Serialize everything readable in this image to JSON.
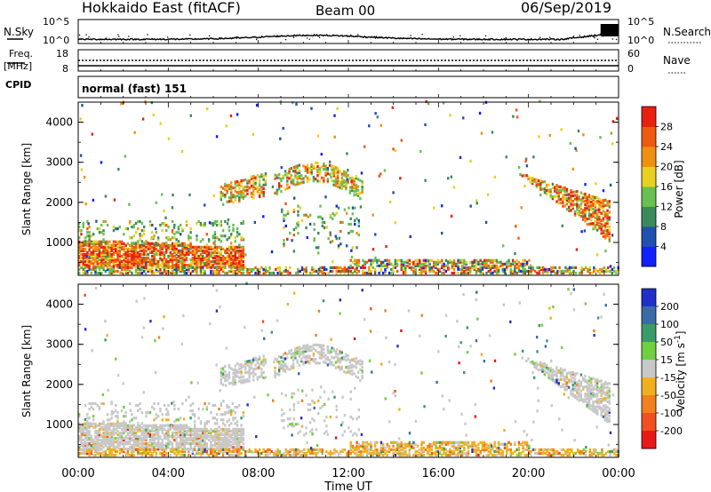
{
  "header": {
    "title": "Hokkaido East (fitACF)",
    "beam": "Beam 00",
    "date": "06/Sep/2019"
  },
  "noise_panel": {
    "left_label": "N.Sky",
    "right_label": "N.Search",
    "left_ticks": [
      "10^5",
      "10^0"
    ],
    "right_ticks": [
      "10^5",
      "10^0"
    ]
  },
  "freq_panel": {
    "left_label_top": "Freq.",
    "left_label_bottom": "[MHz]",
    "left_ticks": [
      "18",
      "8"
    ],
    "right_label": "Nave",
    "right_ticks": [
      "60",
      "0"
    ],
    "cpid_label": "CPID"
  },
  "cpid_panel": {
    "text": "normal (fast) 151"
  },
  "x_axis": {
    "label": "Time UT",
    "ticks": [
      "00:00",
      "04:00",
      "08:00",
      "12:00",
      "16:00",
      "20:00",
      "00:00"
    ]
  },
  "chart_data": [
    {
      "type": "heatmap",
      "title": "",
      "xlabel": "Time UT",
      "ylabel": "Slant Range [km]",
      "x_range_hours": [
        0,
        24
      ],
      "ylim": [
        180,
        4500
      ],
      "y_ticks": [
        1000,
        2000,
        3000,
        4000
      ],
      "colorbar": {
        "label": "Power [dB]",
        "ticks": [
          "4",
          "8",
          "12",
          "16",
          "20",
          "24",
          "28"
        ],
        "colors": [
          "#1020ff",
          "#2050b0",
          "#3a8a5a",
          "#68c050",
          "#e8d020",
          "#f09010",
          "#f05a10",
          "#e82010"
        ]
      },
      "regions": [
        {
          "name": "near-range scatter",
          "t": [
            0,
            7.2
          ],
          "r": [
            300,
            1500
          ],
          "level": "high"
        },
        {
          "name": "E-region band",
          "t": [
            0,
            24
          ],
          "r": [
            200,
            400
          ],
          "level": "mixed"
        },
        {
          "name": "midday arc",
          "t": [
            6.3,
            12.5
          ],
          "r": [
            1300,
            3000
          ],
          "level": "mid"
        },
        {
          "name": "evening band",
          "t": [
            19.5,
            23.6
          ],
          "r": [
            600,
            2700
          ],
          "level": "high"
        }
      ]
    },
    {
      "type": "heatmap",
      "title": "",
      "xlabel": "Time UT",
      "ylabel": "Slant Range [km]",
      "x_range_hours": [
        0,
        24
      ],
      "ylim": [
        180,
        4500
      ],
      "y_ticks": [
        1000,
        2000,
        3000,
        4000
      ],
      "colorbar": {
        "label": "Velocity [m s-1]",
        "ticks": [
          "200",
          "100",
          "50",
          "15",
          "-15",
          "-50",
          "-100",
          "-200"
        ],
        "colors": [
          "#2030c8",
          "#3a6aa8",
          "#3a9a6a",
          "#70d040",
          "#c8c8c8",
          "#f0b020",
          "#f08020",
          "#f05020",
          "#e81818"
        ]
      },
      "regions": [
        {
          "name": "near-range scatter",
          "t": [
            0,
            7.2
          ],
          "r": [
            300,
            1500
          ],
          "level": "near zero"
        },
        {
          "name": "ground band",
          "t": [
            0,
            24
          ],
          "r": [
            200,
            400
          ],
          "level": "negative"
        },
        {
          "name": "midday arc",
          "t": [
            6.3,
            12.5
          ],
          "r": [
            1300,
            3000
          ],
          "level": "near zero"
        },
        {
          "name": "evening band",
          "t": [
            19.5,
            23.6
          ],
          "r": [
            600,
            2700
          ],
          "level": "near zero"
        }
      ]
    }
  ]
}
